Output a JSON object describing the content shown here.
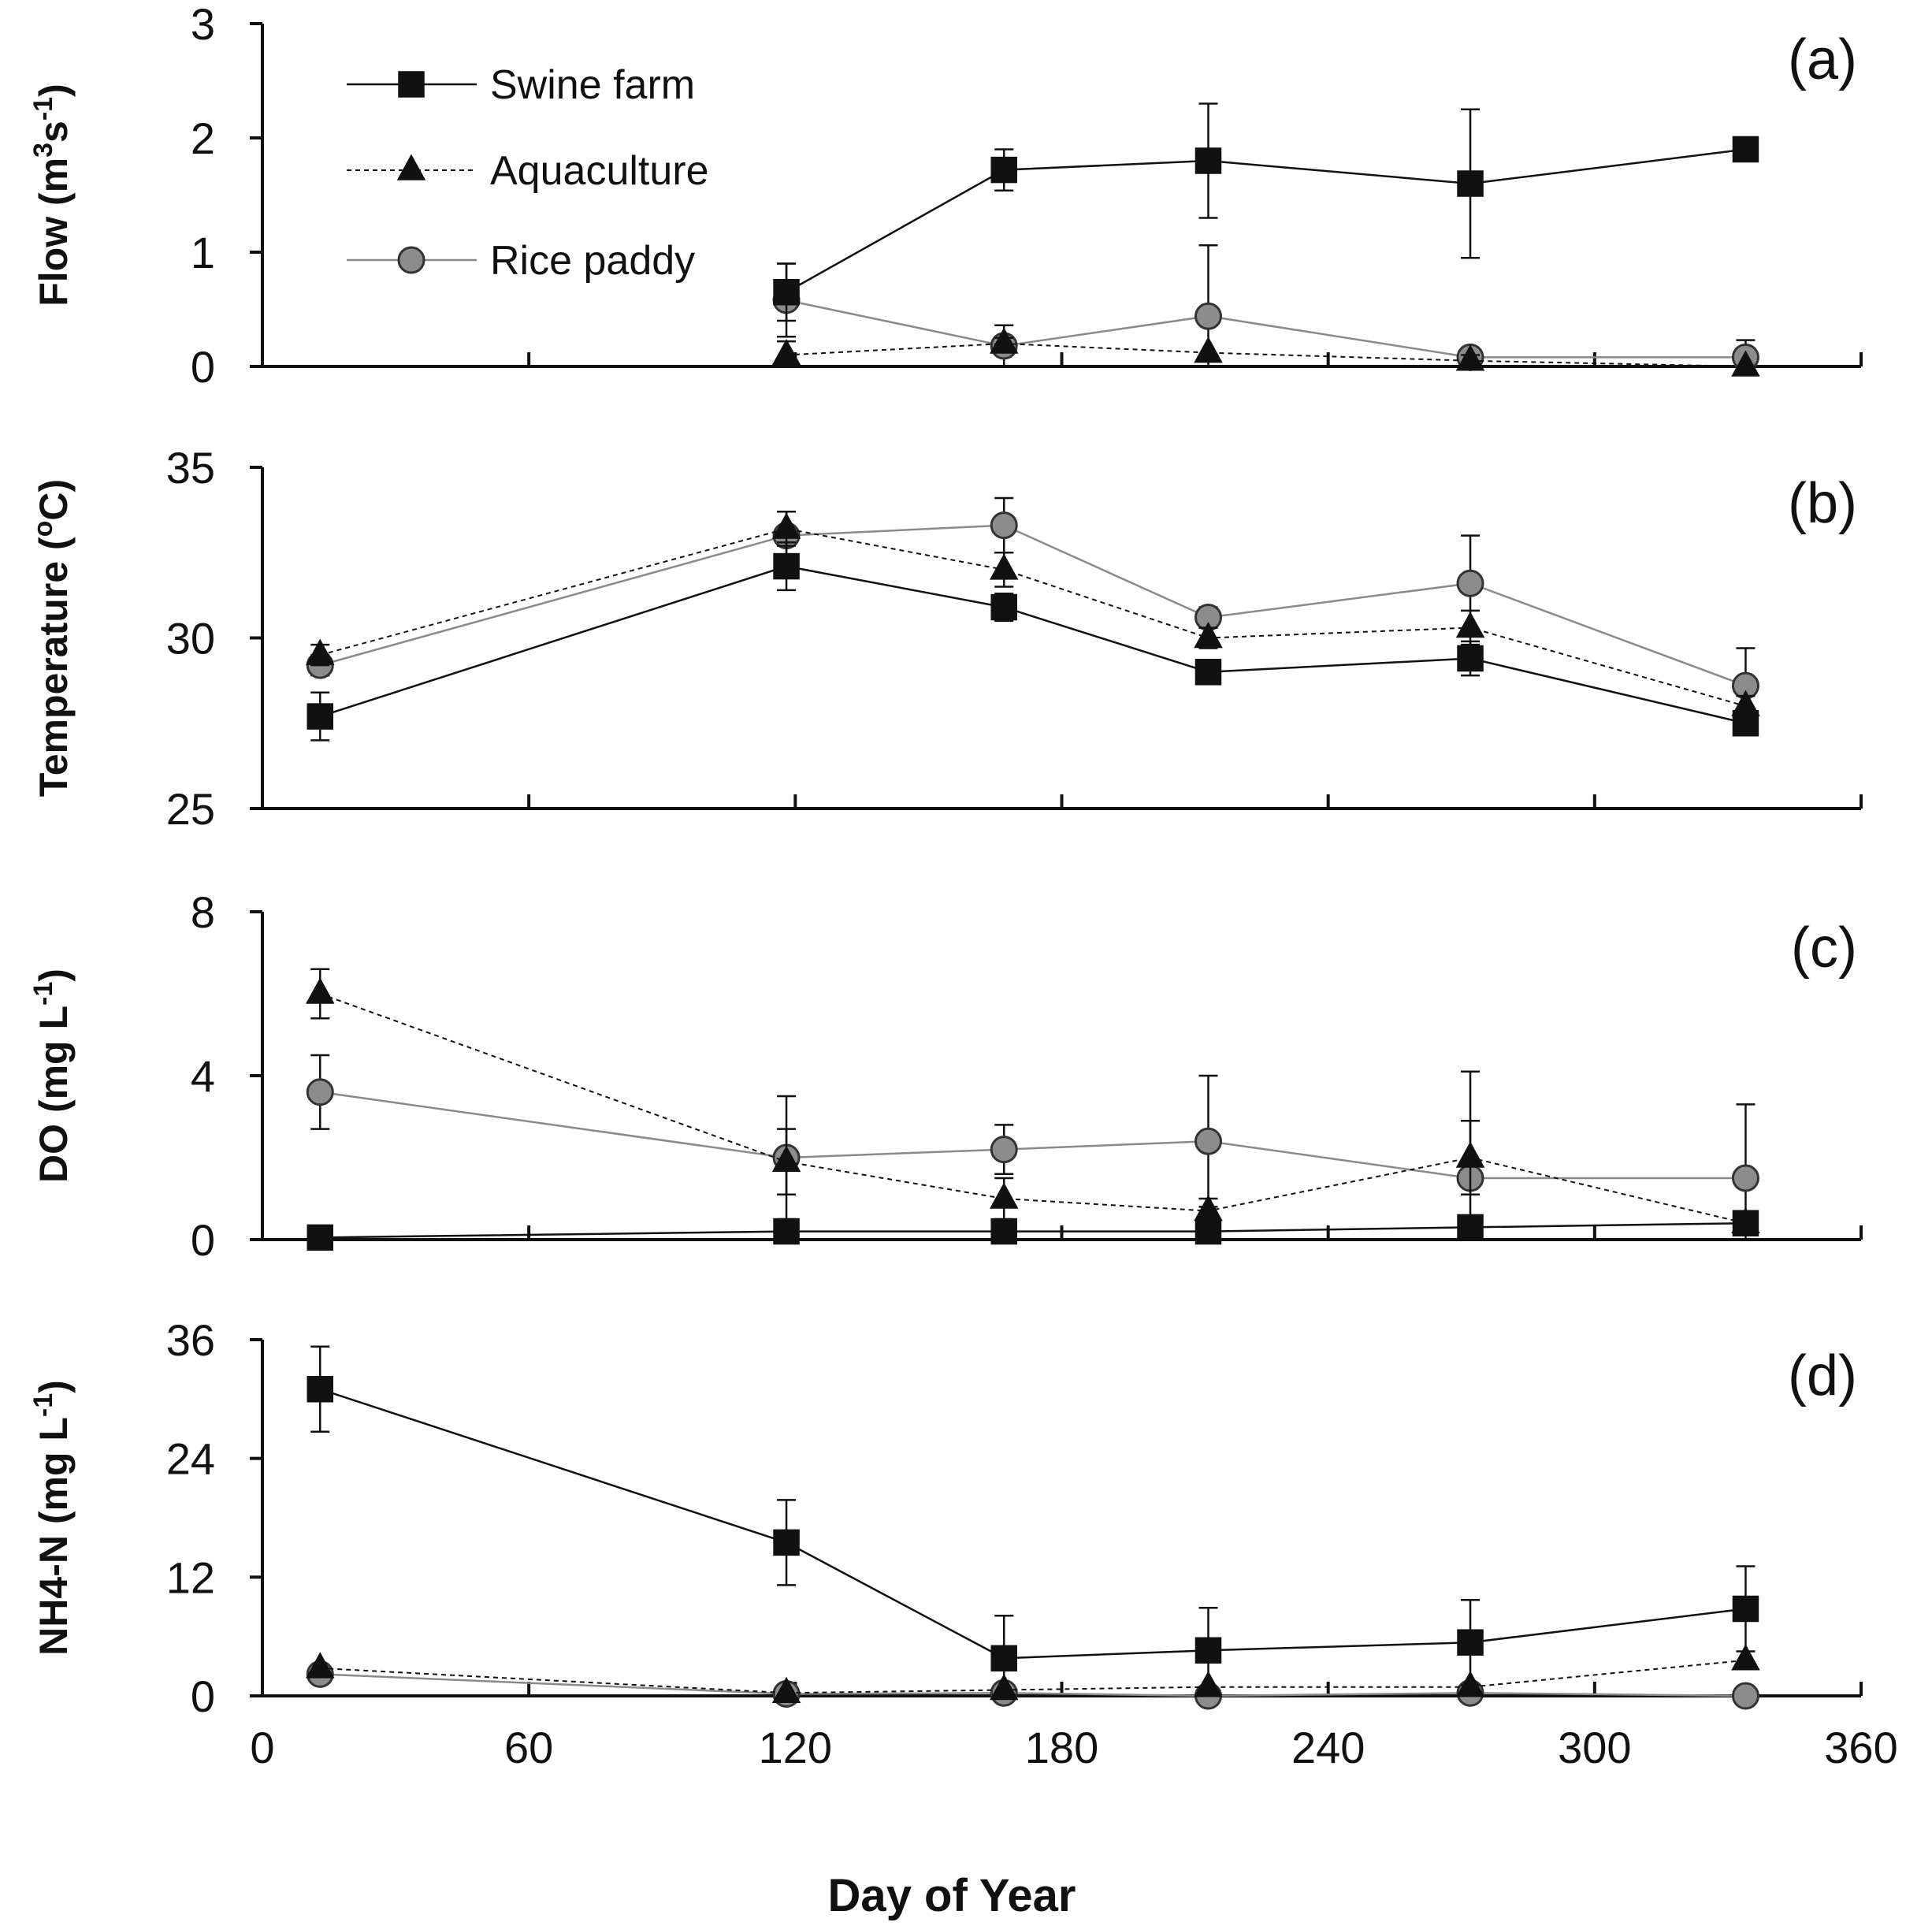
{
  "chart_data": {
    "type": "line",
    "xlabel": "Day of Year",
    "xlim": [
      0,
      360
    ],
    "xticks": [
      "0",
      "60",
      "120",
      "180",
      "240",
      "300",
      "360"
    ],
    "x": [
      13,
      118,
      167,
      213,
      272,
      334
    ],
    "legend": {
      "placement": "top-left of panel (a)",
      "entries": [
        "Swine farm",
        "Aquaculture",
        "Rice paddy"
      ]
    },
    "panels": [
      {
        "tag": "(a)",
        "ylabel": "Flow (m3s-1)",
        "ylabel_parts": [
          "Flow (m",
          "3",
          "s",
          "-1",
          ")"
        ],
        "ylim": [
          0,
          3
        ],
        "yticks": [
          "0",
          "1",
          "2",
          "3"
        ],
        "series": [
          {
            "name": "Swine farm",
            "values": [
              null,
              0.65,
              1.72,
              1.8,
              1.6,
              1.9
            ],
            "errors": [
              null,
              0.25,
              0.18,
              0.5,
              0.65,
              0.0
            ]
          },
          {
            "name": "Aquaculture",
            "values": [
              null,
              0.1,
              0.2,
              0.12,
              0.05,
              0.0
            ],
            "errors": [
              null,
              0.12,
              0.05,
              0.0,
              0.05,
              0.0
            ]
          },
          {
            "name": "Rice paddy",
            "values": [
              null,
              0.58,
              0.18,
              0.44,
              0.08,
              0.08
            ],
            "errors": [
              null,
              0.32,
              0.18,
              0.62,
              0.05,
              0.15
            ]
          }
        ]
      },
      {
        "tag": "(b)",
        "ylabel": "Temperature (oC)",
        "ylabel_parts": [
          "Temperature (",
          "o",
          "C)"
        ],
        "ylim": [
          25,
          35
        ],
        "yticks": [
          "25",
          "30",
          "35"
        ],
        "series": [
          {
            "name": "Swine farm",
            "values": [
              27.7,
              32.1,
              30.9,
              29.0,
              29.4,
              27.5
            ],
            "errors": [
              0.7,
              0.7,
              0.4,
              0.3,
              0.5,
              0.3
            ]
          },
          {
            "name": "Aquaculture",
            "values": [
              29.5,
              33.2,
              32.0,
              30.0,
              30.3,
              28.0
            ],
            "errors": [
              0.3,
              0.5,
              0.5,
              0.3,
              0.5,
              0.3
            ]
          },
          {
            "name": "Rice paddy",
            "values": [
              29.2,
              33.0,
              33.3,
              30.6,
              31.6,
              28.6
            ],
            "errors": [
              0.3,
              0.7,
              0.8,
              0.3,
              1.4,
              1.1
            ]
          }
        ]
      },
      {
        "tag": "(c)",
        "ylabel": "DO (mg L-1)",
        "ylabel_parts": [
          "DO (mg L",
          "-1",
          ")"
        ],
        "ylim": [
          0,
          8
        ],
        "yticks": [
          "0",
          "4",
          "8"
        ],
        "series": [
          {
            "name": "Swine farm",
            "values": [
              0.05,
              0.2,
              0.2,
              0.2,
              0.3,
              0.4
            ],
            "errors": [
              0.05,
              0.05,
              0.05,
              0.05,
              0.05,
              0.05
            ]
          },
          {
            "name": "Aquaculture",
            "values": [
              6.0,
              1.9,
              1.0,
              0.7,
              2.0,
              0.4
            ],
            "errors": [
              0.6,
              0.8,
              0.5,
              0.3,
              0.9,
              0.1
            ]
          },
          {
            "name": "Rice paddy",
            "values": [
              3.6,
              2.0,
              2.2,
              2.4,
              1.5,
              1.5
            ],
            "errors": [
              0.9,
              1.5,
              0.6,
              1.6,
              2.6,
              1.8
            ]
          }
        ]
      },
      {
        "tag": "(d)",
        "ylabel": "NH4-N (mg L-1)",
        "ylabel_parts": [
          "NH4-N (mg L",
          "-1",
          ")"
        ],
        "ylim": [
          0,
          36
        ],
        "yticks": [
          "0",
          "12",
          "24",
          "36"
        ],
        "series": [
          {
            "name": "Swine farm",
            "values": [
              31.0,
              15.5,
              3.8,
              4.6,
              5.4,
              8.8
            ],
            "errors": [
              4.3,
              4.3,
              4.3,
              4.3,
              4.3,
              4.3
            ]
          },
          {
            "name": "Aquaculture",
            "values": [
              2.8,
              0.3,
              0.6,
              0.9,
              0.9,
              3.6
            ],
            "errors": [
              0.0,
              0.0,
              0.0,
              0.0,
              0.0,
              0.0
            ]
          },
          {
            "name": "Rice paddy",
            "values": [
              2.2,
              0.2,
              0.3,
              0.0,
              0.3,
              0.0
            ],
            "errors": [
              0.0,
              0.0,
              0.0,
              0.0,
              0.0,
              0.0
            ]
          }
        ]
      }
    ]
  }
}
